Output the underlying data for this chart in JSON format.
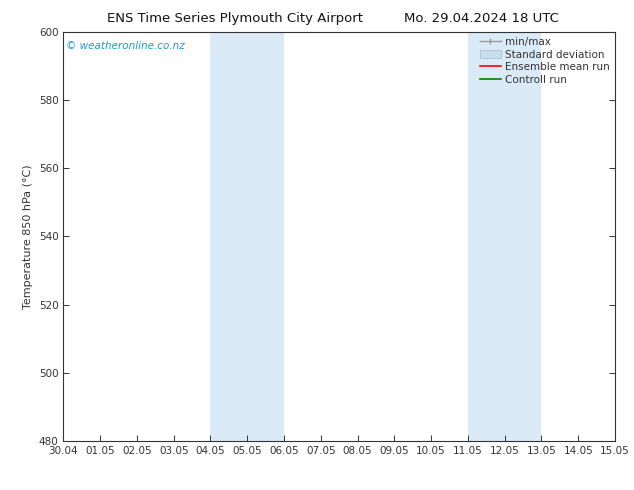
{
  "title_left": "ENS Time Series Plymouth City Airport",
  "title_right": "Mo. 29.04.2024 18 UTC",
  "ylabel": "Temperature 850 hPa (°C)",
  "ylim": [
    480,
    600
  ],
  "yticks": [
    480,
    500,
    520,
    540,
    560,
    580,
    600
  ],
  "xtick_labels": [
    "30.04",
    "01.05",
    "02.05",
    "03.05",
    "04.05",
    "05.05",
    "06.05",
    "07.05",
    "08.05",
    "09.05",
    "10.05",
    "11.05",
    "12.05",
    "13.05",
    "14.05",
    "15.05"
  ],
  "shaded_bands": [
    {
      "xstart": 4,
      "xend": 6,
      "color": "#daeaf7"
    },
    {
      "xstart": 11,
      "xend": 13,
      "color": "#daeaf7"
    }
  ],
  "watermark_text": "© weatheronline.co.nz",
  "watermark_color": "#1a9bdc",
  "bg_color": "#ffffff",
  "plot_bg_color": "#ffffff",
  "spine_color": "#333333",
  "tick_color": "#333333",
  "label_fontsize": 8,
  "tick_fontsize": 7.5,
  "title_fontsize": 9.5
}
